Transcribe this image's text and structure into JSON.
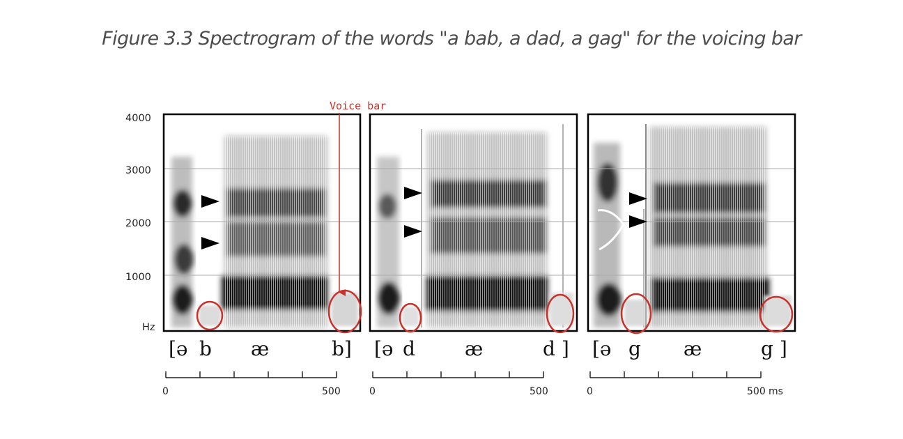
{
  "caption": "Figure 3.3 Spectrogram of the words \"a bab, a dad, a gag\" for the voicing bar",
  "y_axis": {
    "ticks": [
      "4000",
      "3000",
      "2000",
      "1000"
    ],
    "unit": "Hz"
  },
  "annotation": {
    "voice_bar_label": "Voice bar",
    "colors": {
      "annotation": "#c8322a",
      "marker": "#000000",
      "frame": "#000000"
    }
  },
  "panels": [
    {
      "word": "a bab",
      "transcription": [
        "[ə",
        "b",
        "æ",
        "b]"
      ],
      "time_labels": [
        "0",
        "500"
      ]
    },
    {
      "word": "a dad",
      "transcription": [
        "[ə",
        "d",
        "æ",
        "d ]"
      ],
      "time_labels": [
        "0",
        "500"
      ]
    },
    {
      "word": "a gag",
      "transcription": [
        "[ə",
        "g",
        "æ",
        "g ]"
      ],
      "time_labels": [
        "0",
        "500",
        "ms"
      ]
    }
  ]
}
